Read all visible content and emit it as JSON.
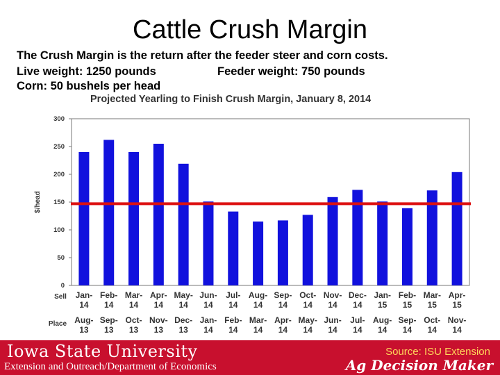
{
  "slide": {
    "title": "Cattle Crush Margin",
    "line1": "The Crush Margin is the return after the feeder steer and corn costs.",
    "line2a": "Live weight:  1250 pounds",
    "line2b": "Feeder weight:  750 pounds",
    "line3": "Corn:  50 bushels per head"
  },
  "footer": {
    "university": "Iowa State University",
    "extension": "Extension and Outreach/Department of Economics",
    "source": "Source: ISU Extension",
    "brand": "Ag Decision Maker"
  },
  "colors": {
    "bar": "#1111dd",
    "reference_line": "#dd1111",
    "footer_bg": "#c8102e"
  },
  "chart_data": {
    "type": "bar",
    "title": "Projected Yearling to Finish Crush Margin, January 8, 2014",
    "ylabel": "$/head",
    "ylim": [
      0,
      300
    ],
    "yticks": [
      0,
      50,
      100,
      150,
      200,
      250,
      300
    ],
    "row_labels": {
      "sell": "Sell",
      "place": "Place"
    },
    "sell": [
      [
        "Jan-",
        "14"
      ],
      [
        "Feb-",
        "14"
      ],
      [
        "Mar-",
        "14"
      ],
      [
        "Apr-",
        "14"
      ],
      [
        "May-",
        "14"
      ],
      [
        "Jun-",
        "14"
      ],
      [
        "Jul-",
        "14"
      ],
      [
        "Aug-",
        "14"
      ],
      [
        "Sep-",
        "14"
      ],
      [
        "Oct-",
        "14"
      ],
      [
        "Nov-",
        "14"
      ],
      [
        "Dec-",
        "14"
      ],
      [
        "Jan-",
        "15"
      ],
      [
        "Feb-",
        "15"
      ],
      [
        "Mar-",
        "15"
      ],
      [
        "Apr-",
        "15"
      ]
    ],
    "place": [
      [
        "Aug-",
        "13"
      ],
      [
        "Sep-",
        "13"
      ],
      [
        "Oct-",
        "13"
      ],
      [
        "Nov-",
        "13"
      ],
      [
        "Dec-",
        "13"
      ],
      [
        "Jan-",
        "14"
      ],
      [
        "Feb-",
        "14"
      ],
      [
        "Mar-",
        "14"
      ],
      [
        "Apr-",
        "14"
      ],
      [
        "May-",
        "14"
      ],
      [
        "Jun-",
        "14"
      ],
      [
        "Jul-",
        "14"
      ],
      [
        "Aug-",
        "14"
      ],
      [
        "Sep-",
        "14"
      ],
      [
        "Oct-",
        "14"
      ],
      [
        "Nov-",
        "14"
      ]
    ],
    "values": [
      240,
      262,
      240,
      255,
      219,
      151,
      133,
      115,
      117,
      127,
      159,
      172,
      151,
      139,
      171,
      204
    ],
    "reference_line": 147
  }
}
